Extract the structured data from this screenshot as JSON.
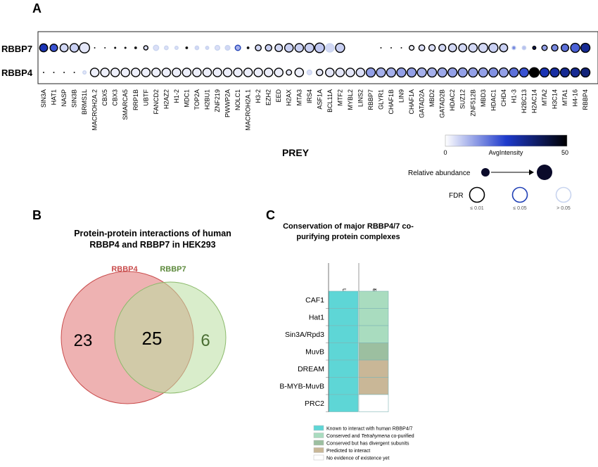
{
  "panel_labels": {
    "a": "A",
    "b": "B",
    "c": "C"
  },
  "chart_data": [
    {
      "type": "scatter",
      "subtype": "dot-plot",
      "row_labels": [
        "RBBP7",
        "RBBP4"
      ],
      "x_title": "PREY",
      "preys": [
        "SIN3A",
        "HAT1",
        "NASP",
        "SIN3B",
        "BRMS1L",
        "MACROH2A.2",
        "CBX5",
        "CBX3",
        "SMARCA5",
        "RRP1B",
        "UBTF",
        "FANCD2",
        "H2AZ2",
        "H1-2",
        "MDC1",
        "TOP2A",
        "H2BU1",
        "ZNF219",
        "PWWP2A",
        "NOLC1",
        "MACROH2A.1",
        "H3-2",
        "EZH2",
        "EED",
        "H2AX",
        "MTA3",
        "IRS4",
        "ASF1A",
        "BCL11A",
        "MTF2",
        "MYBL2",
        "LINS2",
        "RBBP7",
        "GLYR1",
        "CHAF1B",
        "LIN9",
        "CHAF1A",
        "GATAD2A",
        "MBD2",
        "GATAD2B",
        "HDAC2",
        "SUZ12",
        "ZNF512B",
        "MBD3",
        "HDAC1",
        "CHD4",
        "H1-3",
        "H2BC13",
        "H2AC14",
        "MTA2",
        "H3C14",
        "MTA1",
        "H4-16",
        "RBBP4"
      ],
      "values": {
        "RBBP7": {
          "size": [
            0.75,
            0.7,
            0.75,
            0.8,
            0.95,
            0.12,
            0.1,
            0.2,
            0.2,
            0.25,
            0.4,
            0.5,
            0.35,
            0.3,
            0.25,
            0.35,
            0.3,
            0.45,
            0.45,
            0.5,
            0.25,
            0.55,
            0.6,
            0.7,
            0.8,
            0.8,
            0.85,
            0.9,
            0.8,
            0.85,
            0.0,
            0.0,
            0.0,
            0.07,
            0.07,
            0.08,
            0.45,
            0.55,
            0.6,
            0.65,
            0.75,
            0.75,
            0.8,
            0.85,
            0.85,
            0.75,
            0.35,
            0.35,
            0.3,
            0.5,
            0.6,
            0.7,
            0.85,
            0.85
          ],
          "intensity": [
            28,
            22,
            5,
            6,
            3,
            2,
            2,
            2,
            3,
            3,
            4,
            4,
            4,
            4,
            5,
            5,
            5,
            4,
            5,
            10,
            6,
            5,
            6,
            5,
            6,
            6,
            6,
            7,
            5,
            6,
            0,
            0,
            0,
            40,
            30,
            2,
            2,
            4,
            4,
            5,
            5,
            5,
            5,
            5,
            6,
            6,
            15,
            8,
            40,
            12,
            15,
            18,
            20,
            32
          ],
          "fdr": [
            1,
            1,
            1,
            1,
            1,
            3,
            3,
            3,
            3,
            3,
            1,
            3,
            3,
            3,
            3,
            3,
            3,
            3,
            3,
            2,
            3,
            1,
            1,
            1,
            1,
            1,
            1,
            1,
            3,
            1,
            0,
            0,
            0,
            1,
            1,
            3,
            1,
            1,
            1,
            1,
            1,
            1,
            1,
            1,
            1,
            1,
            3,
            3,
            1,
            1,
            1,
            1,
            1,
            1
          ]
        },
        "RBBP4": {
          "size": [
            0.08,
            0.07,
            0.07,
            0.1,
            0.3,
            0.8,
            0.8,
            0.8,
            0.8,
            0.8,
            0.8,
            0.8,
            0.8,
            0.8,
            0.8,
            0.8,
            0.8,
            0.8,
            0.8,
            0.8,
            0.8,
            0.8,
            0.8,
            0.8,
            0.5,
            0.8,
            0.45,
            0.6,
            0.8,
            0.8,
            0.8,
            0.8,
            0.85,
            0.85,
            0.85,
            0.85,
            0.85,
            0.85,
            0.85,
            0.85,
            0.85,
            0.85,
            0.85,
            0.85,
            0.85,
            0.85,
            0.85,
            0.85,
            0.9,
            0.85,
            0.85,
            0.85,
            0.85,
            0.85
          ],
          "intensity": [
            50,
            5,
            3,
            5,
            3,
            2,
            2,
            2,
            2,
            2,
            2,
            2,
            2,
            2,
            2,
            2,
            2,
            2,
            2,
            2,
            2,
            2,
            2,
            2,
            3,
            2,
            4,
            3,
            3,
            3,
            3,
            4,
            12,
            10,
            10,
            12,
            12,
            10,
            10,
            11,
            12,
            12,
            12,
            12,
            14,
            12,
            18,
            22,
            50,
            28,
            30,
            32,
            32,
            35
          ],
          "fdr": [
            1,
            3,
            3,
            3,
            3,
            1,
            1,
            1,
            1,
            1,
            1,
            1,
            1,
            1,
            1,
            1,
            1,
            1,
            1,
            1,
            1,
            1,
            1,
            1,
            1,
            1,
            3,
            1,
            1,
            1,
            1,
            1,
            1,
            1,
            1,
            1,
            1,
            1,
            1,
            1,
            1,
            1,
            1,
            1,
            1,
            1,
            1,
            1,
            1,
            1,
            1,
            1,
            1,
            1
          ]
        }
      },
      "color_scale": {
        "label": "AvgIntensity",
        "min": 0,
        "max": 50,
        "colors": [
          "#ffffff",
          "#1e3acc",
          "#000000"
        ],
        "min_label": "0",
        "max_label": "50"
      },
      "size_legend": {
        "label": "Relative abundance"
      },
      "fdr_legend": {
        "label": "FDR",
        "levels": [
          "≤ 0.01",
          "≤ 0.05",
          "> 0.05"
        ],
        "colors": [
          "#000000",
          "#1f3fb5",
          "#c8d4ef"
        ]
      }
    },
    {
      "type": "venn",
      "title_line1": "Protein-protein interactions of human",
      "title_line2": "RBBP4 and RBBP7 in HEK293",
      "sets": [
        {
          "name": "RBBP4",
          "only": 23,
          "color": "#e07373",
          "label_color": "#c94c4c"
        },
        {
          "name": "RBBP7",
          "only": 6,
          "color": "#b9dea0",
          "label_color": "#5d8a3c"
        }
      ],
      "intersection": 25
    },
    {
      "type": "table",
      "title_line1": "Conservation of major RBBP4/7 co-",
      "title_line2": "purifying  protein complexes",
      "columns": [
        "Human",
        "Tetrahymena"
      ],
      "rows": [
        "CAF1",
        "Hat1",
        "Sin3A/Rpd3",
        "MuvB",
        "DREAM",
        "B-MYB-MuvB",
        "PRC2"
      ],
      "cells": [
        [
          "known",
          "conserved"
        ],
        [
          "known",
          "conserved"
        ],
        [
          "known",
          "conserved"
        ],
        [
          "known",
          "divergent"
        ],
        [
          "known",
          "predicted"
        ],
        [
          "known",
          "predicted"
        ],
        [
          "known",
          "none"
        ]
      ],
      "legend": [
        {
          "key": "known",
          "text": "Known to interact with human RBBP4/7",
          "color": "#5ed6d6"
        },
        {
          "key": "conserved",
          "text_before": "Conserved and ",
          "text_italic": "Tetrahymena",
          "text_after": " co-purified",
          "color": "#a9dcbf"
        },
        {
          "key": "divergent",
          "text": "Conserved but has divergent subunits",
          "color": "#9cbfa0"
        },
        {
          "key": "predicted",
          "text": "Predicted to interact",
          "color": "#c9b797"
        },
        {
          "key": "none",
          "text": "No evidence of existence yet",
          "color": "#ffffff"
        }
      ]
    }
  ]
}
